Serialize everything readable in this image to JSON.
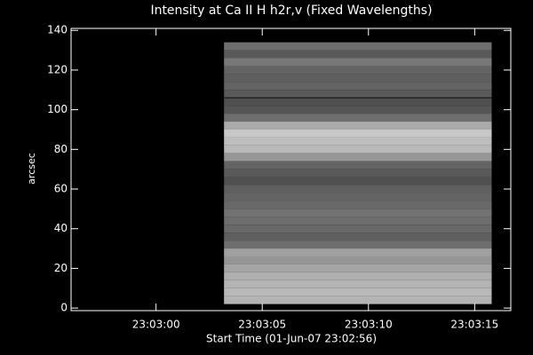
{
  "chart_data": {
    "type": "image",
    "title": "Intensity at Ca II H h2r,v (Fixed Wavelengths)",
    "xlabel": "Start Time (01-Jun-07 23:02:56)",
    "ylabel": "arcsec",
    "xlim": [
      0,
      20.7
    ],
    "xticks": [
      {
        "value": 4,
        "label": "23:03:00"
      },
      {
        "value": 9,
        "label": "23:03:05"
      },
      {
        "value": 14,
        "label": "23:03:10"
      },
      {
        "value": 19,
        "label": "23:03:15"
      }
    ],
    "ylim": [
      -1.3,
      141
    ],
    "yticks": [
      0,
      20,
      40,
      60,
      80,
      100,
      120,
      140
    ],
    "x_extent": [
      7.2,
      19.8
    ],
    "y": [
      132,
      128,
      124,
      120,
      116,
      112,
      108,
      104,
      100,
      96,
      92,
      88,
      84,
      80,
      76,
      72,
      68,
      64,
      60,
      56,
      52,
      48,
      44,
      40,
      36,
      32,
      28,
      24,
      20,
      16,
      12,
      8,
      4
    ],
    "values": [
      110,
      90,
      120,
      100,
      95,
      100,
      90,
      80,
      85,
      110,
      170,
      200,
      190,
      185,
      150,
      100,
      90,
      80,
      95,
      100,
      105,
      115,
      110,
      105,
      95,
      110,
      160,
      150,
      165,
      175,
      180,
      185,
      180
    ],
    "hline": 106
  }
}
